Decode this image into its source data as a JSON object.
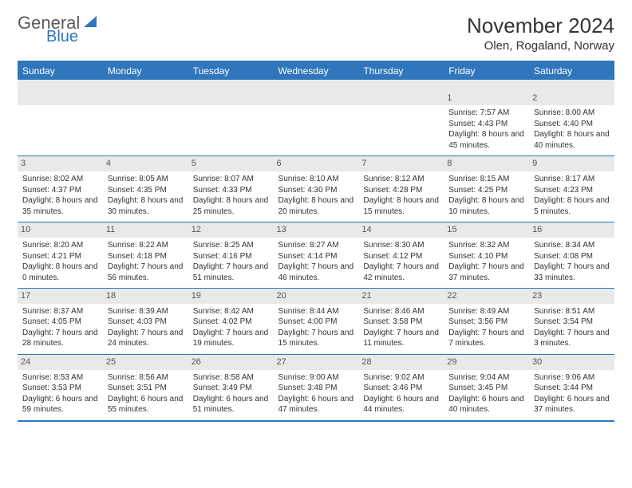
{
  "brand": {
    "part1": "General",
    "part2": "Blue",
    "color": "#2f76bc",
    "text_color": "#5a5a5a"
  },
  "header": {
    "month_title": "November 2024",
    "location": "Olen, Rogaland, Norway"
  },
  "calendar": {
    "day_headers": [
      "Sunday",
      "Monday",
      "Tuesday",
      "Wednesday",
      "Thursday",
      "Friday",
      "Saturday"
    ],
    "header_bg": "#2f76bc",
    "stripe_bg": "#e9e9e9",
    "border_color": "#2f76bc",
    "weeks": [
      [
        null,
        null,
        null,
        null,
        null,
        {
          "n": "1",
          "sunrise": "Sunrise: 7:57 AM",
          "sunset": "Sunset: 4:43 PM",
          "daylight": "Daylight: 8 hours and 45 minutes."
        },
        {
          "n": "2",
          "sunrise": "Sunrise: 8:00 AM",
          "sunset": "Sunset: 4:40 PM",
          "daylight": "Daylight: 8 hours and 40 minutes."
        }
      ],
      [
        {
          "n": "3",
          "sunrise": "Sunrise: 8:02 AM",
          "sunset": "Sunset: 4:37 PM",
          "daylight": "Daylight: 8 hours and 35 minutes."
        },
        {
          "n": "4",
          "sunrise": "Sunrise: 8:05 AM",
          "sunset": "Sunset: 4:35 PM",
          "daylight": "Daylight: 8 hours and 30 minutes."
        },
        {
          "n": "5",
          "sunrise": "Sunrise: 8:07 AM",
          "sunset": "Sunset: 4:33 PM",
          "daylight": "Daylight: 8 hours and 25 minutes."
        },
        {
          "n": "6",
          "sunrise": "Sunrise: 8:10 AM",
          "sunset": "Sunset: 4:30 PM",
          "daylight": "Daylight: 8 hours and 20 minutes."
        },
        {
          "n": "7",
          "sunrise": "Sunrise: 8:12 AM",
          "sunset": "Sunset: 4:28 PM",
          "daylight": "Daylight: 8 hours and 15 minutes."
        },
        {
          "n": "8",
          "sunrise": "Sunrise: 8:15 AM",
          "sunset": "Sunset: 4:25 PM",
          "daylight": "Daylight: 8 hours and 10 minutes."
        },
        {
          "n": "9",
          "sunrise": "Sunrise: 8:17 AM",
          "sunset": "Sunset: 4:23 PM",
          "daylight": "Daylight: 8 hours and 5 minutes."
        }
      ],
      [
        {
          "n": "10",
          "sunrise": "Sunrise: 8:20 AM",
          "sunset": "Sunset: 4:21 PM",
          "daylight": "Daylight: 8 hours and 0 minutes."
        },
        {
          "n": "11",
          "sunrise": "Sunrise: 8:22 AM",
          "sunset": "Sunset: 4:18 PM",
          "daylight": "Daylight: 7 hours and 56 minutes."
        },
        {
          "n": "12",
          "sunrise": "Sunrise: 8:25 AM",
          "sunset": "Sunset: 4:16 PM",
          "daylight": "Daylight: 7 hours and 51 minutes."
        },
        {
          "n": "13",
          "sunrise": "Sunrise: 8:27 AM",
          "sunset": "Sunset: 4:14 PM",
          "daylight": "Daylight: 7 hours and 46 minutes."
        },
        {
          "n": "14",
          "sunrise": "Sunrise: 8:30 AM",
          "sunset": "Sunset: 4:12 PM",
          "daylight": "Daylight: 7 hours and 42 minutes."
        },
        {
          "n": "15",
          "sunrise": "Sunrise: 8:32 AM",
          "sunset": "Sunset: 4:10 PM",
          "daylight": "Daylight: 7 hours and 37 minutes."
        },
        {
          "n": "16",
          "sunrise": "Sunrise: 8:34 AM",
          "sunset": "Sunset: 4:08 PM",
          "daylight": "Daylight: 7 hours and 33 minutes."
        }
      ],
      [
        {
          "n": "17",
          "sunrise": "Sunrise: 8:37 AM",
          "sunset": "Sunset: 4:05 PM",
          "daylight": "Daylight: 7 hours and 28 minutes."
        },
        {
          "n": "18",
          "sunrise": "Sunrise: 8:39 AM",
          "sunset": "Sunset: 4:03 PM",
          "daylight": "Daylight: 7 hours and 24 minutes."
        },
        {
          "n": "19",
          "sunrise": "Sunrise: 8:42 AM",
          "sunset": "Sunset: 4:02 PM",
          "daylight": "Daylight: 7 hours and 19 minutes."
        },
        {
          "n": "20",
          "sunrise": "Sunrise: 8:44 AM",
          "sunset": "Sunset: 4:00 PM",
          "daylight": "Daylight: 7 hours and 15 minutes."
        },
        {
          "n": "21",
          "sunrise": "Sunrise: 8:46 AM",
          "sunset": "Sunset: 3:58 PM",
          "daylight": "Daylight: 7 hours and 11 minutes."
        },
        {
          "n": "22",
          "sunrise": "Sunrise: 8:49 AM",
          "sunset": "Sunset: 3:56 PM",
          "daylight": "Daylight: 7 hours and 7 minutes."
        },
        {
          "n": "23",
          "sunrise": "Sunrise: 8:51 AM",
          "sunset": "Sunset: 3:54 PM",
          "daylight": "Daylight: 7 hours and 3 minutes."
        }
      ],
      [
        {
          "n": "24",
          "sunrise": "Sunrise: 8:53 AM",
          "sunset": "Sunset: 3:53 PM",
          "daylight": "Daylight: 6 hours and 59 minutes."
        },
        {
          "n": "25",
          "sunrise": "Sunrise: 8:56 AM",
          "sunset": "Sunset: 3:51 PM",
          "daylight": "Daylight: 6 hours and 55 minutes."
        },
        {
          "n": "26",
          "sunrise": "Sunrise: 8:58 AM",
          "sunset": "Sunset: 3:49 PM",
          "daylight": "Daylight: 6 hours and 51 minutes."
        },
        {
          "n": "27",
          "sunrise": "Sunrise: 9:00 AM",
          "sunset": "Sunset: 3:48 PM",
          "daylight": "Daylight: 6 hours and 47 minutes."
        },
        {
          "n": "28",
          "sunrise": "Sunrise: 9:02 AM",
          "sunset": "Sunset: 3:46 PM",
          "daylight": "Daylight: 6 hours and 44 minutes."
        },
        {
          "n": "29",
          "sunrise": "Sunrise: 9:04 AM",
          "sunset": "Sunset: 3:45 PM",
          "daylight": "Daylight: 6 hours and 40 minutes."
        },
        {
          "n": "30",
          "sunrise": "Sunrise: 9:06 AM",
          "sunset": "Sunset: 3:44 PM",
          "daylight": "Daylight: 6 hours and 37 minutes."
        }
      ]
    ]
  }
}
